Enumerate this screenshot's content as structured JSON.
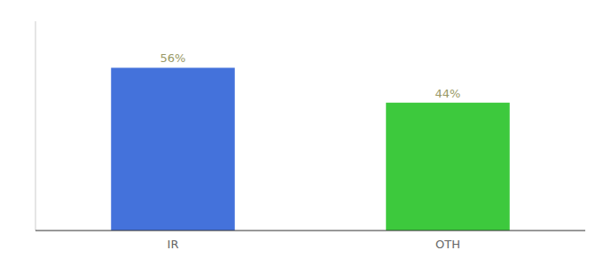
{
  "chart_data": {
    "type": "bar",
    "categories": [
      "IR",
      "OTH"
    ],
    "values": [
      56,
      44
    ],
    "value_labels": [
      "56%",
      "44%"
    ],
    "colors": [
      "#4472DB",
      "#3DC93D"
    ],
    "ylim": [
      0,
      72
    ],
    "data_labels": true,
    "tick_labels": "x",
    "grid": false
  }
}
